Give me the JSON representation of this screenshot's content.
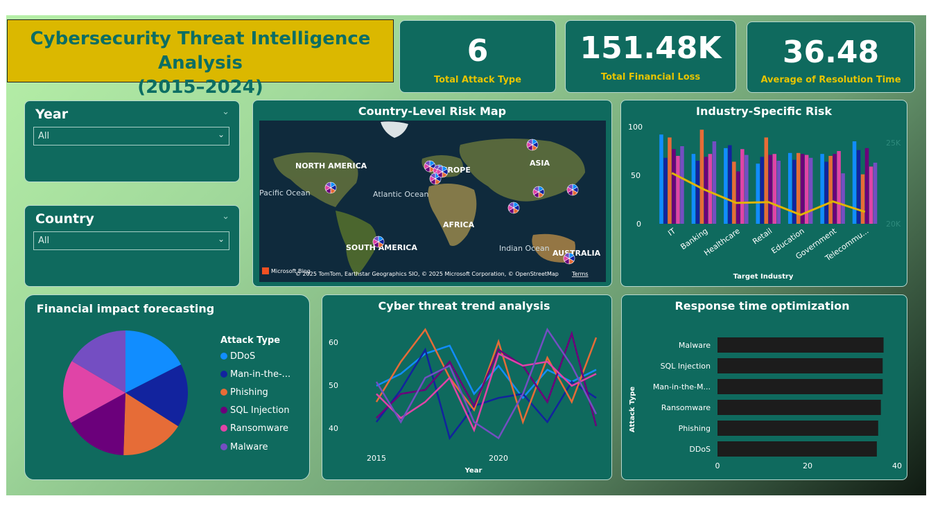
{
  "title": {
    "line1": "Cybersecurity Threat Intelligence Analysis",
    "line2": "(2015–2024)"
  },
  "kpis": [
    {
      "value": "6",
      "label": "Total Attack Type"
    },
    {
      "value": "151.48K",
      "label": "Total Financial Loss"
    },
    {
      "value": "36.48",
      "label": "Average of Resolution Time"
    }
  ],
  "slicers": {
    "year": {
      "title": "Year",
      "selected": "All"
    },
    "country": {
      "title": "Country",
      "selected": "All"
    }
  },
  "map": {
    "title": "Country-Level Risk Map",
    "labels": [
      "NORTH AMERICA",
      "EUROPE",
      "ASIA",
      "AFRICA",
      "SOUTH AMERICA",
      "AUSTRALIA",
      "Atlantic Ocean",
      "Indian Ocean",
      "Pacific Ocean"
    ],
    "attribution": "© 2025 TomTom, Earthstar Geographics SIO, © 2025 Microsoft Corporation, © OpenStreetMap",
    "terms": "Terms",
    "brand": "Microsoft Bing"
  },
  "colors": {
    "ddos": "#118dff",
    "mitm": "#12239e",
    "phishing": "#e66c37",
    "sql": "#6b007b",
    "ransomware": "#e044a7",
    "malware": "#744ec2",
    "line_accent": "#e0b400",
    "bar_dark": "#1c1c1c"
  },
  "industry_chart": {
    "title": "Industry-Specific Risk",
    "xlabel": "Target Industry",
    "y_ticks": [
      "100",
      "50",
      "0"
    ],
    "y2_ticks": [
      "25K",
      "20K"
    ],
    "chart_data": {
      "type": "bar",
      "categories": [
        "IT",
        "Banking",
        "Healthcare",
        "Retail",
        "Education",
        "Government",
        "Telecommu..."
      ],
      "series": [
        {
          "name": "DDoS",
          "values": [
            92,
            72,
            78,
            62,
            73,
            72,
            85
          ]
        },
        {
          "name": "Man-in-the-Middle",
          "values": [
            68,
            65,
            81,
            69,
            66,
            64,
            76
          ]
        },
        {
          "name": "Phishing",
          "values": [
            89,
            97,
            64,
            89,
            73,
            70,
            51
          ]
        },
        {
          "name": "SQL Injection",
          "values": [
            77,
            69,
            54,
            71,
            72,
            72,
            78
          ]
        },
        {
          "name": "Ransomware",
          "values": [
            70,
            72,
            77,
            72,
            71,
            75,
            59
          ]
        },
        {
          "name": "Malware",
          "values": [
            80,
            85,
            71,
            65,
            68,
            52,
            63
          ]
        }
      ],
      "line": {
        "name": "Total Financial Loss",
        "values": [
          22900,
          21800,
          20900,
          20950,
          20100,
          21000,
          20300
        ]
      },
      "ylim": [
        0,
        100
      ],
      "y2lim": [
        19500,
        26000
      ]
    }
  },
  "pie_chart": {
    "title": "Financial impact forecasting",
    "legend_title": "Attack Type",
    "legend": [
      "DDoS",
      "Man-in-the-...",
      "Phishing",
      "SQL Injection",
      "Ransomware",
      "Malware"
    ],
    "chart_data": {
      "type": "pie",
      "labels": [
        "DDoS",
        "Man-in-the-Middle",
        "Phishing",
        "SQL Injection",
        "Ransomware",
        "Malware"
      ],
      "values": [
        17.5,
        16.5,
        16.5,
        16.5,
        16.5,
        16.5
      ]
    }
  },
  "trend_chart": {
    "title": "Cyber threat trend analysis",
    "xlabel": "Year",
    "y_ticks": [
      "60",
      "50",
      "40"
    ],
    "x_ticks": [
      "2015",
      "2020"
    ],
    "chart_data": {
      "type": "line",
      "x": [
        2015,
        2016,
        2017,
        2018,
        2019,
        2020,
        2021,
        2022,
        2023,
        2024
      ],
      "ylim": [
        35,
        66
      ],
      "series": [
        {
          "name": "DDoS",
          "values": [
            50,
            53,
            58,
            60,
            48,
            55,
            47,
            54,
            51,
            54
          ]
        },
        {
          "name": "Man-in-the-Middle",
          "values": [
            41,
            49,
            59,
            37,
            45,
            47,
            48,
            41,
            51,
            47
          ]
        },
        {
          "name": "Phishing",
          "values": [
            46,
            56,
            64,
            52,
            44,
            61,
            41,
            57,
            46,
            62
          ]
        },
        {
          "name": "SQL Injection",
          "values": [
            42,
            48,
            49,
            56,
            45,
            59,
            55,
            46,
            63,
            40
          ]
        },
        {
          "name": "Ransomware",
          "values": [
            48,
            42,
            46,
            52,
            39,
            58,
            55,
            56,
            50,
            53
          ]
        },
        {
          "name": "Malware",
          "values": [
            51,
            41,
            52,
            55,
            41,
            37,
            48,
            64,
            55,
            43
          ]
        }
      ]
    }
  },
  "response_chart": {
    "title": "Response time optimization",
    "ylabel": "Attack Type",
    "x_ticks": [
      "0",
      "20",
      "40"
    ],
    "chart_data": {
      "type": "bar",
      "orientation": "horizontal",
      "categories": [
        "Malware",
        "SQL Injection",
        "Man-in-the-M...",
        "Ransomware",
        "Phishing",
        "DDoS"
      ],
      "values": [
        37.0,
        36.8,
        36.8,
        36.4,
        35.8,
        35.5
      ],
      "xlim": [
        0,
        40
      ]
    }
  }
}
